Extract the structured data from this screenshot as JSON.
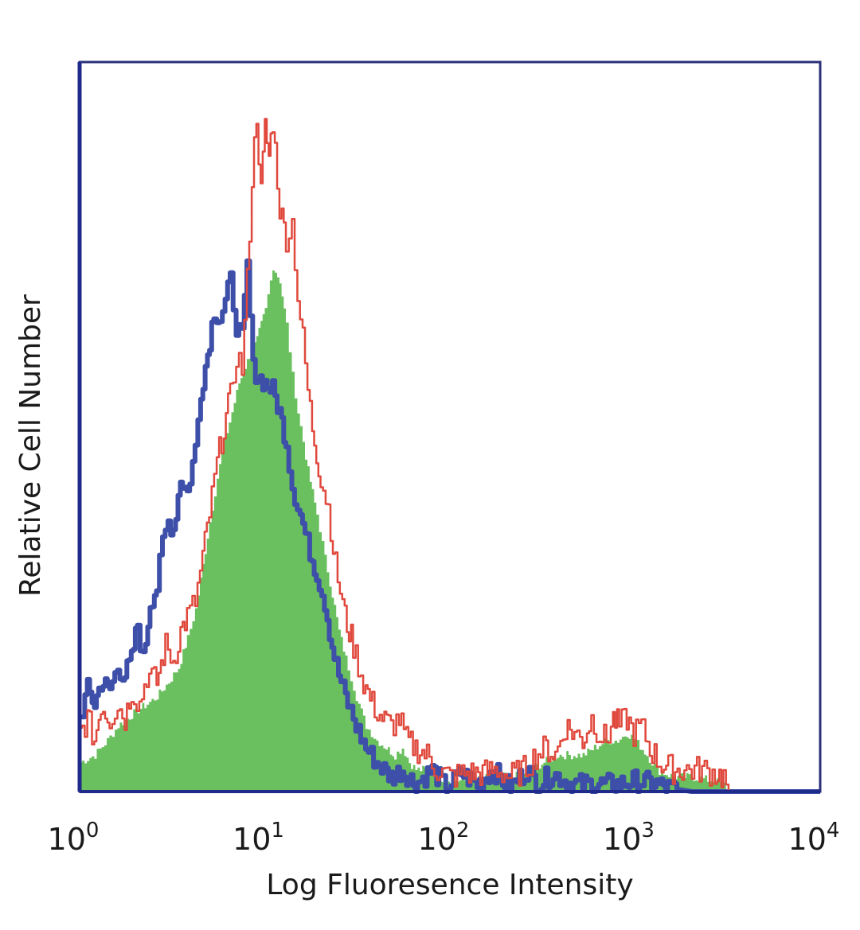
{
  "chart_data": {
    "type": "area",
    "title": "",
    "xlabel": "Log Fluoresence Intensity",
    "ylabel": "Relative Cell Number",
    "x_scale": "log",
    "xlim": [
      1,
      10000
    ],
    "ylim": [
      0,
      100
    ],
    "x_ticks": [
      {
        "base": "10",
        "exp": "0"
      },
      {
        "base": "10",
        "exp": "1"
      },
      {
        "base": "10",
        "exp": "2"
      },
      {
        "base": "10",
        "exp": "3"
      },
      {
        "base": "10",
        "exp": "4"
      }
    ],
    "grid": false,
    "legend": "none",
    "series": [
      {
        "color": "#3d4fa8",
        "style": "line",
        "points": [
          [
            1,
            10
          ],
          [
            1.1,
            14
          ],
          [
            1.2,
            12
          ],
          [
            1.3,
            15
          ],
          [
            1.45,
            14
          ],
          [
            1.6,
            17
          ],
          [
            1.75,
            16
          ],
          [
            1.9,
            18
          ],
          [
            2.05,
            23
          ],
          [
            2.2,
            18
          ],
          [
            2.4,
            26
          ],
          [
            2.6,
            28
          ],
          [
            2.8,
            34
          ],
          [
            3.0,
            37
          ],
          [
            3.2,
            36
          ],
          [
            3.5,
            43
          ],
          [
            3.8,
            41
          ],
          [
            4.2,
            47
          ],
          [
            4.5,
            55
          ],
          [
            4.9,
            60
          ],
          [
            5.3,
            66
          ],
          [
            5.7,
            65
          ],
          [
            6.1,
            67
          ],
          [
            6.5,
            70
          ],
          [
            7.0,
            64
          ],
          [
            7.5,
            62
          ],
          [
            8.0,
            72
          ],
          [
            8.6,
            58
          ],
          [
            9.2,
            57
          ],
          [
            10,
            56
          ],
          [
            11,
            55
          ],
          [
            12,
            52
          ],
          [
            13,
            48
          ],
          [
            14,
            42
          ],
          [
            15.5,
            38
          ],
          [
            17,
            34
          ],
          [
            19,
            30
          ],
          [
            21,
            26
          ],
          [
            23,
            20
          ],
          [
            25,
            16
          ],
          [
            28,
            12
          ],
          [
            31,
            9
          ],
          [
            35,
            6
          ],
          [
            40,
            4
          ],
          [
            48,
            2
          ],
          [
            55,
            3
          ],
          [
            65,
            1
          ],
          [
            80,
            3
          ],
          [
            95,
            0.5
          ],
          [
            115,
            2.5
          ],
          [
            140,
            1
          ],
          [
            170,
            3
          ],
          [
            210,
            0.5
          ],
          [
            260,
            3
          ],
          [
            300,
            1
          ],
          [
            360,
            2.5
          ],
          [
            450,
            1
          ],
          [
            600,
            1
          ],
          [
            800,
            1
          ],
          [
            1000,
            1.5
          ],
          [
            1300,
            1
          ],
          [
            1500,
            0.5
          ],
          [
            2000,
            0
          ],
          [
            10000,
            0
          ]
        ]
      },
      {
        "color": "#e0483c",
        "style": "line",
        "points": [
          [
            1,
            8
          ],
          [
            1.1,
            10
          ],
          [
            1.2,
            7
          ],
          [
            1.3,
            12
          ],
          [
            1.45,
            10
          ],
          [
            1.6,
            12
          ],
          [
            1.75,
            10
          ],
          [
            1.9,
            14
          ],
          [
            2.1,
            12
          ],
          [
            2.3,
            16
          ],
          [
            2.6,
            15
          ],
          [
            2.9,
            20
          ],
          [
            3.2,
            18
          ],
          [
            3.5,
            22
          ],
          [
            3.8,
            24
          ],
          [
            4.2,
            26
          ],
          [
            4.6,
            32
          ],
          [
            5.0,
            38
          ],
          [
            5.5,
            45
          ],
          [
            6.0,
            50
          ],
          [
            6.5,
            54
          ],
          [
            7.0,
            60
          ],
          [
            7.5,
            58
          ],
          [
            8.0,
            70
          ],
          [
            8.5,
            84
          ],
          [
            9.0,
            93
          ],
          [
            9.5,
            82
          ],
          [
            10,
            91
          ],
          [
            10.5,
            87
          ],
          [
            11,
            92
          ],
          [
            12,
            80
          ],
          [
            13,
            76
          ],
          [
            14,
            78
          ],
          [
            15,
            68
          ],
          [
            16,
            62
          ],
          [
            17,
            55
          ],
          [
            18,
            50
          ],
          [
            20,
            43
          ],
          [
            22,
            39
          ],
          [
            24,
            31
          ],
          [
            27,
            24
          ],
          [
            30,
            20
          ],
          [
            34,
            15
          ],
          [
            38,
            12
          ],
          [
            43,
            10
          ],
          [
            48,
            9
          ],
          [
            53,
            10
          ],
          [
            58,
            7
          ],
          [
            65,
            6
          ],
          [
            75,
            5
          ],
          [
            85,
            3
          ],
          [
            100,
            2
          ],
          [
            120,
            2.5
          ],
          [
            150,
            2.5
          ],
          [
            180,
            3
          ],
          [
            210,
            2
          ],
          [
            250,
            3
          ],
          [
            290,
            5
          ],
          [
            330,
            6
          ],
          [
            370,
            5
          ],
          [
            420,
            9
          ],
          [
            470,
            8
          ],
          [
            520,
            7
          ],
          [
            580,
            10
          ],
          [
            640,
            8
          ],
          [
            700,
            7
          ],
          [
            760,
            10
          ],
          [
            820,
            9
          ],
          [
            900,
            10
          ],
          [
            980,
            8
          ],
          [
            1080,
            9
          ],
          [
            1200,
            6
          ],
          [
            1350,
            4
          ],
          [
            1600,
            3
          ],
          [
            1900,
            3
          ],
          [
            2300,
            3
          ],
          [
            2700,
            2.5
          ],
          [
            3000,
            2
          ],
          [
            3200,
            0
          ],
          [
            10000,
            0
          ]
        ]
      },
      {
        "color": "#6abf5e",
        "style": "fill",
        "points": [
          [
            1,
            4
          ],
          [
            1.2,
            5
          ],
          [
            1.4,
            7
          ],
          [
            1.6,
            9
          ],
          [
            1.8,
            10
          ],
          [
            2.0,
            11
          ],
          [
            2.3,
            12
          ],
          [
            2.6,
            13
          ],
          [
            3.0,
            15
          ],
          [
            3.4,
            17
          ],
          [
            3.8,
            21
          ],
          [
            4.2,
            25
          ],
          [
            4.6,
            31
          ],
          [
            5.0,
            37
          ],
          [
            5.5,
            43
          ],
          [
            6.0,
            48
          ],
          [
            6.6,
            52
          ],
          [
            7.2,
            56
          ],
          [
            8.0,
            59
          ],
          [
            9.0,
            62
          ],
          [
            10,
            66
          ],
          [
            11,
            72
          ],
          [
            12,
            70
          ],
          [
            13,
            64
          ],
          [
            14,
            57
          ],
          [
            15,
            52
          ],
          [
            16,
            48
          ],
          [
            17,
            44
          ],
          [
            19,
            38
          ],
          [
            21,
            32
          ],
          [
            23,
            27
          ],
          [
            25,
            22
          ],
          [
            28,
            17
          ],
          [
            31,
            13
          ],
          [
            35,
            9
          ],
          [
            40,
            7
          ],
          [
            45,
            6
          ],
          [
            50,
            5
          ],
          [
            55,
            6
          ],
          [
            60,
            4
          ],
          [
            65,
            3
          ],
          [
            75,
            3
          ],
          [
            85,
            2
          ],
          [
            100,
            1.5
          ],
          [
            130,
            1.5
          ],
          [
            170,
            2
          ],
          [
            220,
            2
          ],
          [
            270,
            3
          ],
          [
            320,
            4
          ],
          [
            380,
            5
          ],
          [
            450,
            5
          ],
          [
            520,
            5
          ],
          [
            600,
            6
          ],
          [
            700,
            7
          ],
          [
            800,
            7
          ],
          [
            900,
            8
          ],
          [
            1000,
            7
          ],
          [
            1150,
            5
          ],
          [
            1300,
            3
          ],
          [
            1600,
            2
          ],
          [
            2000,
            2
          ],
          [
            2600,
            1.5
          ],
          [
            3000,
            1
          ],
          [
            3200,
            0
          ],
          [
            10000,
            0
          ]
        ]
      }
    ]
  }
}
